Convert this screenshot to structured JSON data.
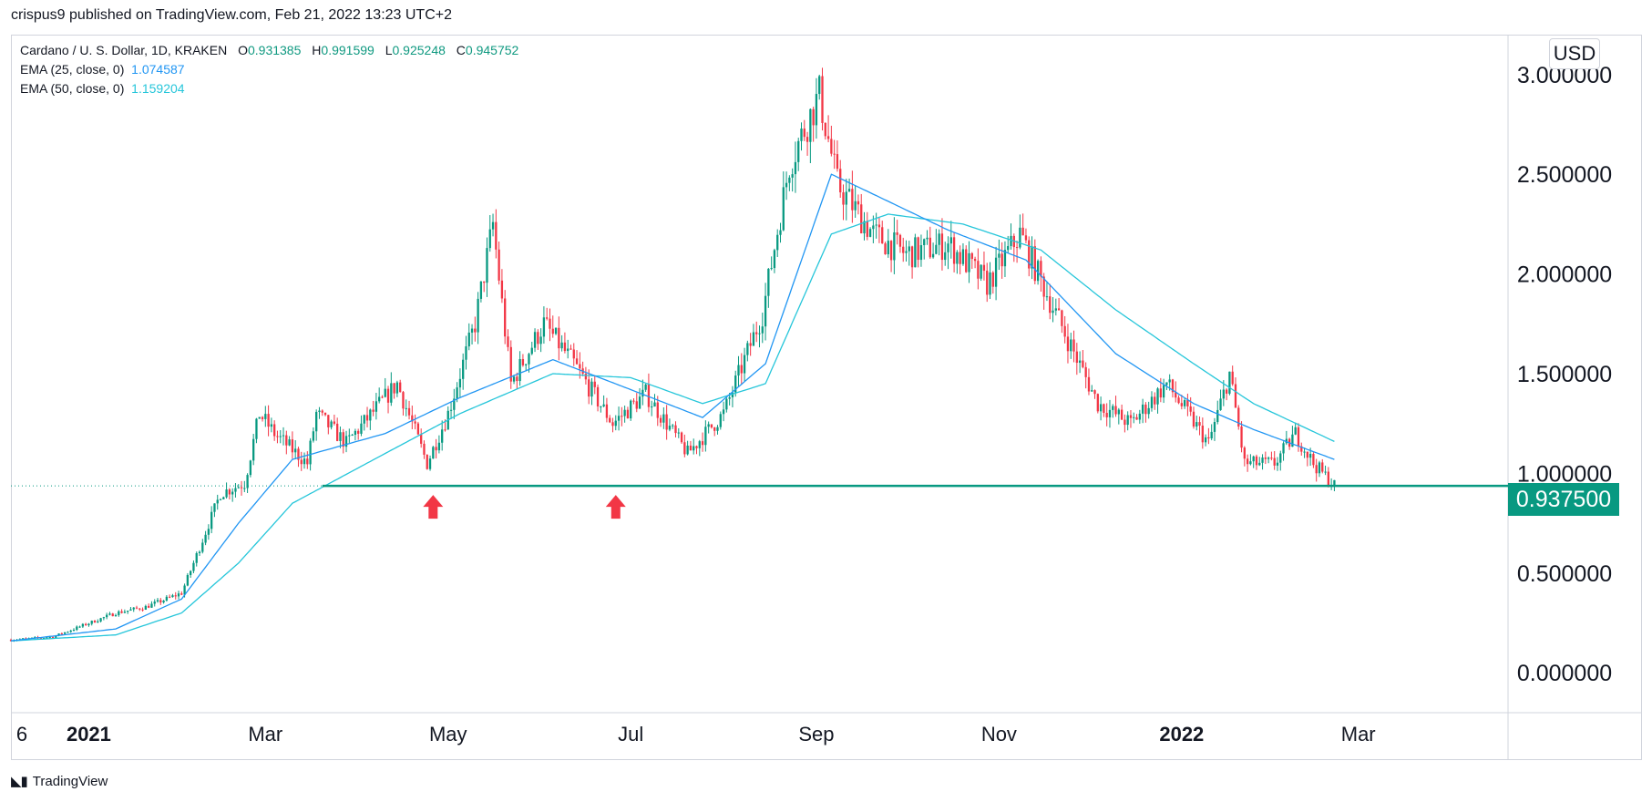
{
  "header": {
    "publisher": "crispus9 published on TradingView.com, Feb 21, 2022 13:23 UTC+2"
  },
  "legend": {
    "symbol": "Cardano / U. S. Dollar, 1D, KRAKEN",
    "o_label": "O",
    "o_value": "0.931385",
    "h_label": "H",
    "h_value": "0.991599",
    "l_label": "L",
    "l_value": "0.925248",
    "c_label": "C",
    "c_value": "0.945752",
    "ema25_label": "EMA (25, close, 0)",
    "ema25_value": "1.074587",
    "ema50_label": "EMA (50, close, 0)",
    "ema50_value": "1.159204"
  },
  "currency": "USD",
  "current_price": "0.937500",
  "footer": {
    "brand": "TradingView"
  },
  "colors": {
    "up": "#089981",
    "down": "#f23645",
    "ema25": "#2196f3",
    "ema50": "#26c6da",
    "support": "#089981",
    "arrow": "#f23645"
  },
  "chart_data": {
    "type": "candlestick",
    "title": "Cardano / U. S. Dollar, 1D, KRAKEN",
    "ylim": [
      -0.2,
      3.2
    ],
    "y_ticks": [
      "0.000000",
      "0.500000",
      "1.000000",
      "1.500000",
      "2.000000",
      "2.500000",
      "3.000000"
    ],
    "y_tick_values": [
      0,
      0.5,
      1.0,
      1.5,
      2.0,
      2.5,
      3.0
    ],
    "x_ticks": [
      {
        "label": "6",
        "date": "2020-12-06",
        "bold": false
      },
      {
        "label": "2021",
        "date": "2021-01-01",
        "bold": true
      },
      {
        "label": "Mar",
        "date": "2021-03-01",
        "bold": false
      },
      {
        "label": "May",
        "date": "2021-05-01",
        "bold": false
      },
      {
        "label": "Jul",
        "date": "2021-07-01",
        "bold": false
      },
      {
        "label": "Sep",
        "date": "2021-09-01",
        "bold": false
      },
      {
        "label": "Nov",
        "date": "2021-11-01",
        "bold": false
      },
      {
        "label": "2022",
        "date": "2022-01-01",
        "bold": true
      },
      {
        "label": "Mar",
        "date": "2022-03-01",
        "bold": false
      }
    ],
    "xlim": [
      "2020-12-06",
      "2022-04-20"
    ],
    "support_level": 0.9375,
    "support_start": "2021-03-20",
    "arrows": [
      "2021-04-26",
      "2021-06-26"
    ],
    "price_anchors": [
      [
        "2020-12-06",
        0.165
      ],
      [
        "2020-12-20",
        0.18
      ],
      [
        "2021-01-10",
        0.3
      ],
      [
        "2021-01-20",
        0.33
      ],
      [
        "2021-02-01",
        0.4
      ],
      [
        "2021-02-05",
        0.55
      ],
      [
        "2021-02-14",
        0.9
      ],
      [
        "2021-02-22",
        0.95
      ],
      [
        "2021-02-27",
        1.3
      ],
      [
        "2021-03-04",
        1.2
      ],
      [
        "2021-03-15",
        1.05
      ],
      [
        "2021-03-18",
        1.3
      ],
      [
        "2021-03-28",
        1.15
      ],
      [
        "2021-04-14",
        1.45
      ],
      [
        "2021-04-24",
        1.05
      ],
      [
        "2021-05-01",
        1.3
      ],
      [
        "2021-05-10",
        1.75
      ],
      [
        "2021-05-16",
        2.25
      ],
      [
        "2021-05-22",
        1.45
      ],
      [
        "2021-06-02",
        1.75
      ],
      [
        "2021-06-12",
        1.55
      ],
      [
        "2021-06-25",
        1.25
      ],
      [
        "2021-07-06",
        1.4
      ],
      [
        "2021-07-20",
        1.1
      ],
      [
        "2021-08-01",
        1.3
      ],
      [
        "2021-08-14",
        1.8
      ],
      [
        "2021-08-23",
        2.55
      ],
      [
        "2021-09-02",
        2.9
      ],
      [
        "2021-09-08",
        2.45
      ],
      [
        "2021-09-20",
        2.2
      ],
      [
        "2021-10-01",
        2.1
      ],
      [
        "2021-10-15",
        2.15
      ],
      [
        "2021-10-28",
        1.95
      ],
      [
        "2021-11-08",
        2.2
      ],
      [
        "2021-11-20",
        1.8
      ],
      [
        "2021-12-04",
        1.35
      ],
      [
        "2021-12-15",
        1.25
      ],
      [
        "2021-12-27",
        1.45
      ],
      [
        "2022-01-10",
        1.15
      ],
      [
        "2022-01-17",
        1.5
      ],
      [
        "2022-01-22",
        1.05
      ],
      [
        "2022-02-01",
        1.05
      ],
      [
        "2022-02-08",
        1.2
      ],
      [
        "2022-02-14",
        1.05
      ],
      [
        "2022-02-21",
        0.94
      ]
    ],
    "ema25_anchors": [
      [
        "2020-12-06",
        0.16
      ],
      [
        "2021-01-10",
        0.22
      ],
      [
        "2021-02-01",
        0.37
      ],
      [
        "2021-02-20",
        0.75
      ],
      [
        "2021-03-10",
        1.07
      ],
      [
        "2021-04-10",
        1.2
      ],
      [
        "2021-05-05",
        1.38
      ],
      [
        "2021-06-05",
        1.57
      ],
      [
        "2021-07-01",
        1.42
      ],
      [
        "2021-07-25",
        1.28
      ],
      [
        "2021-08-15",
        1.55
      ],
      [
        "2021-09-06",
        2.5
      ],
      [
        "2021-09-20",
        2.4
      ],
      [
        "2021-10-15",
        2.22
      ],
      [
        "2021-11-10",
        2.07
      ],
      [
        "2021-12-10",
        1.6
      ],
      [
        "2022-01-05",
        1.35
      ],
      [
        "2022-01-25",
        1.22
      ],
      [
        "2022-02-21",
        1.07
      ]
    ],
    "ema50_anchors": [
      [
        "2020-12-06",
        0.16
      ],
      [
        "2021-01-10",
        0.19
      ],
      [
        "2021-02-01",
        0.3
      ],
      [
        "2021-02-20",
        0.55
      ],
      [
        "2021-03-10",
        0.85
      ],
      [
        "2021-04-10",
        1.1
      ],
      [
        "2021-05-05",
        1.3
      ],
      [
        "2021-06-05",
        1.5
      ],
      [
        "2021-07-01",
        1.48
      ],
      [
        "2021-07-25",
        1.35
      ],
      [
        "2021-08-15",
        1.45
      ],
      [
        "2021-09-06",
        2.2
      ],
      [
        "2021-09-25",
        2.3
      ],
      [
        "2021-10-20",
        2.25
      ],
      [
        "2021-11-15",
        2.12
      ],
      [
        "2021-12-10",
        1.82
      ],
      [
        "2022-01-05",
        1.55
      ],
      [
        "2022-01-25",
        1.35
      ],
      [
        "2022-02-21",
        1.16
      ]
    ]
  }
}
